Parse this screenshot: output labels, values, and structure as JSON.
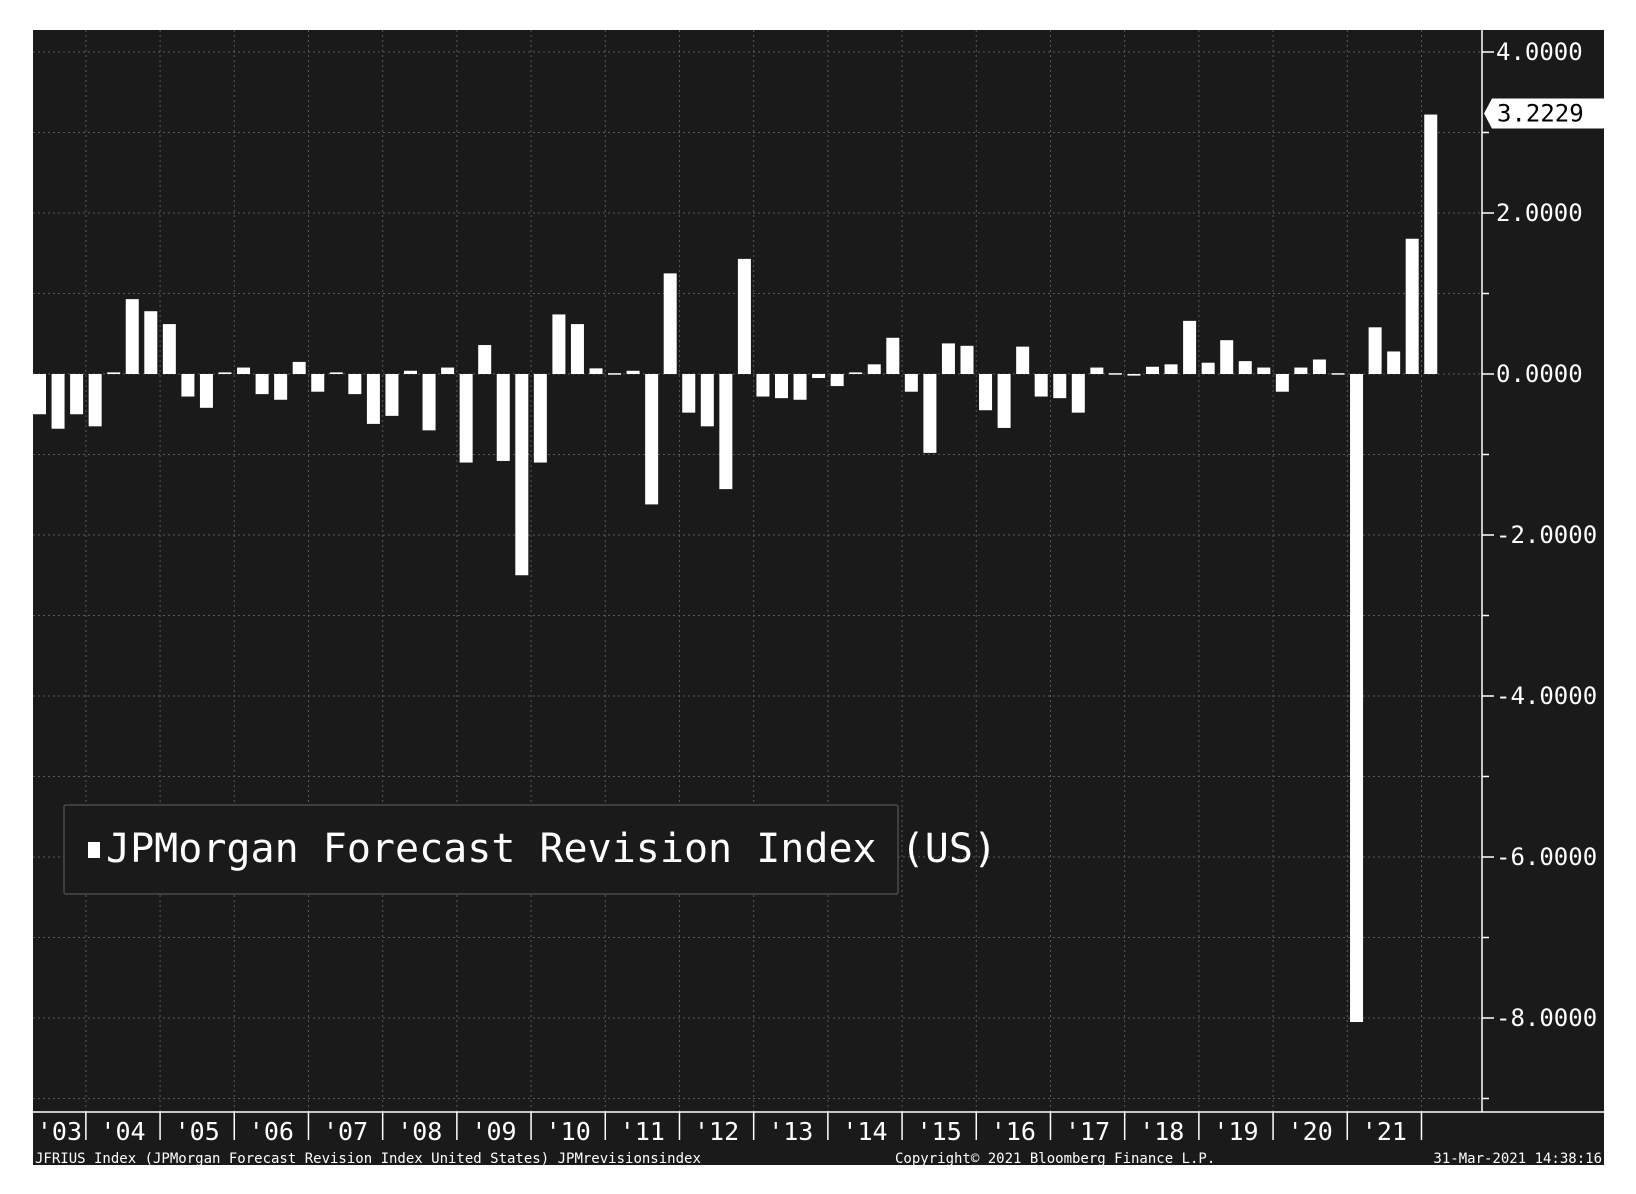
{
  "chart_data": {
    "type": "bar",
    "legend": {
      "label": "JPMorgan Forecast Revision Index (US)",
      "position": "bottom-left"
    },
    "yaxis": {
      "ticks": [
        "4.0000",
        "2.0000",
        "0.0000",
        "-2.0000",
        "-4.0000",
        "-6.0000",
        "-8.0000"
      ],
      "tick_values": [
        4,
        2,
        0,
        -2,
        -4,
        -6,
        -8
      ],
      "range": [
        -9.2,
        4.3
      ],
      "side": "right"
    },
    "xaxis": {
      "labels": [
        "'03",
        "'04",
        "'05",
        "'06",
        "'07",
        "'08",
        "'09",
        "'10",
        "'11",
        "'12",
        "'13",
        "'14",
        "'15",
        "'16",
        "'17",
        "'18",
        "'19",
        "'20",
        "'21"
      ],
      "frequency": "quarterly",
      "start_year": 2002,
      "start_quarter": 2
    },
    "last_value_label": "3.2229",
    "series": [
      {
        "values": [
          -0.5,
          -0.68,
          -0.5,
          -0.65,
          0.02,
          0.93,
          0.78,
          0.62,
          -0.28,
          -0.42,
          0.02,
          0.08,
          -0.25,
          -0.32,
          0.15,
          -0.22,
          0.02,
          -0.25,
          -0.62,
          -0.52,
          0.04,
          -0.7,
          0.08,
          -1.1,
          0.36,
          -1.08,
          -2.5,
          -1.1,
          0.74,
          0.62,
          0.07,
          0.01,
          0.04,
          -1.62,
          1.25,
          -0.48,
          -0.65,
          -1.43,
          1.43,
          -0.28,
          -0.3,
          -0.32,
          -0.05,
          -0.15,
          0.02,
          0.12,
          0.45,
          -0.22,
          -0.98,
          0.38,
          0.35,
          -0.45,
          -0.67,
          0.34,
          -0.28,
          -0.3,
          -0.48,
          0.08,
          0.01,
          -0.02,
          0.09,
          0.12,
          0.66,
          0.14,
          0.42,
          0.16,
          0.08,
          -0.22,
          0.08,
          0.18,
          0.01,
          -8.05,
          0.58,
          0.28,
          1.68,
          3.2229
        ]
      }
    ],
    "grid": true,
    "colors": {
      "background": "#1a1a1a",
      "bars": "#ffffff",
      "grid": "#5a5a5a",
      "text": "#ffffff"
    }
  },
  "footer": {
    "source": "JFRIUS Index (JPMorgan Forecast Revision Index United States) JPMrevisionsindex",
    "copyright": "Copyright© 2021 Bloomberg Finance L.P.",
    "timestamp": "31-Mar-2021 14:38:16"
  }
}
